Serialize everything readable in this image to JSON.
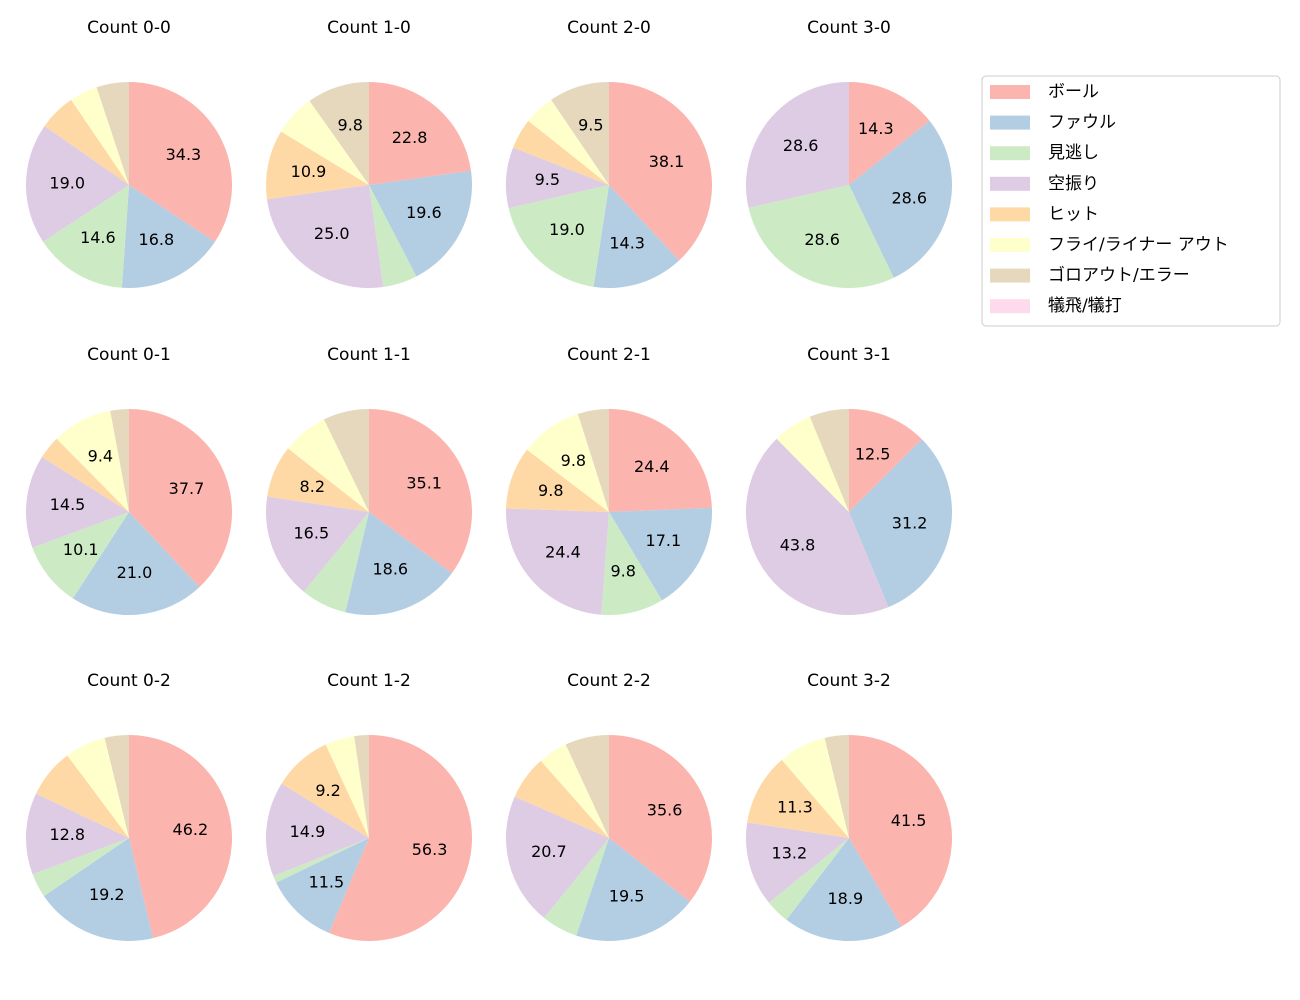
{
  "chart_data": [
    {
      "type": "pie",
      "title": "Count 0-0",
      "categories": [
        "ボール",
        "ファウル",
        "見逃し",
        "空振り",
        "ヒット",
        "フライ/ライナー アウト",
        "ゴロアウト/エラー",
        "犠飛/犠打"
      ],
      "colors": [
        "#fbb4ae",
        "#b3cde3",
        "#ccebc5",
        "#decbe4",
        "#fed9a6",
        "#ffffcc",
        "#e5d8bd",
        "#fddaec"
      ],
      "values": [
        34.3,
        16.8,
        14.6,
        19.0,
        5.8,
        4.4,
        5.1,
        0
      ],
      "value_labels": [
        "34.3",
        "16.8",
        "14.6",
        "19.0",
        null,
        null,
        null,
        null
      ]
    },
    {
      "type": "pie",
      "title": "Count 1-0",
      "categories": [
        "ボール",
        "ファウル",
        "見逃し",
        "空振り",
        "ヒット",
        "フライ/ライナー アウト",
        "ゴロアウト/エラー",
        "犠飛/犠打"
      ],
      "colors": [
        "#fbb4ae",
        "#b3cde3",
        "#ccebc5",
        "#decbe4",
        "#fed9a6",
        "#ffffcc",
        "#e5d8bd",
        "#fddaec"
      ],
      "values": [
        22.8,
        19.6,
        5.4,
        25.0,
        10.9,
        6.5,
        9.8,
        0
      ],
      "value_labels": [
        "22.8",
        "19.6",
        null,
        "25.0",
        "10.9",
        null,
        "9.8",
        null
      ]
    },
    {
      "type": "pie",
      "title": "Count 2-0",
      "categories": [
        "ボール",
        "ファウル",
        "見逃し",
        "空振り",
        "ヒット",
        "フライ/ライナー アウト",
        "ゴロアウト/エラー",
        "犠飛/犠打"
      ],
      "colors": [
        "#fbb4ae",
        "#b3cde3",
        "#ccebc5",
        "#decbe4",
        "#fed9a6",
        "#ffffcc",
        "#e5d8bd",
        "#fddaec"
      ],
      "values": [
        38.1,
        14.3,
        19.0,
        9.5,
        4.8,
        4.8,
        9.5,
        0
      ],
      "value_labels": [
        "38.1",
        "14.3",
        "19.0",
        "9.5",
        null,
        null,
        "9.5",
        null
      ]
    },
    {
      "type": "pie",
      "title": "Count 3-0",
      "categories": [
        "ボール",
        "ファウル",
        "見逃し",
        "空振り",
        "ヒット",
        "フライ/ライナー アウト",
        "ゴロアウト/エラー",
        "犠飛/犠打"
      ],
      "colors": [
        "#fbb4ae",
        "#b3cde3",
        "#ccebc5",
        "#decbe4",
        "#fed9a6",
        "#ffffcc",
        "#e5d8bd",
        "#fddaec"
      ],
      "values": [
        14.3,
        28.6,
        28.6,
        28.6,
        0,
        0,
        0,
        0
      ],
      "value_labels": [
        "14.3",
        "28.6",
        "28.6",
        "28.6",
        null,
        null,
        null,
        null
      ]
    },
    {
      "type": "pie",
      "title": "Count 0-1",
      "categories": [
        "ボール",
        "ファウル",
        "見逃し",
        "空振り",
        "ヒット",
        "フライ/ライナー アウト",
        "ゴロアウト/エラー",
        "犠飛/犠打"
      ],
      "colors": [
        "#fbb4ae",
        "#b3cde3",
        "#ccebc5",
        "#decbe4",
        "#fed9a6",
        "#ffffcc",
        "#e5d8bd",
        "#fddaec"
      ],
      "values": [
        37.7,
        21.0,
        10.1,
        14.5,
        3.6,
        9.4,
        2.9,
        0
      ],
      "value_labels": [
        "37.7",
        "21.0",
        "10.1",
        "14.5",
        null,
        "9.4",
        null,
        null
      ]
    },
    {
      "type": "pie",
      "title": "Count 1-1",
      "categories": [
        "ボール",
        "ファウル",
        "見逃し",
        "空振り",
        "ヒット",
        "フライ/ライナー アウト",
        "ゴロアウト/エラー",
        "犠飛/犠打"
      ],
      "colors": [
        "#fbb4ae",
        "#b3cde3",
        "#ccebc5",
        "#decbe4",
        "#fed9a6",
        "#ffffcc",
        "#e5d8bd",
        "#fddaec"
      ],
      "values": [
        35.1,
        18.6,
        7.2,
        16.5,
        8.2,
        7.2,
        7.2,
        0
      ],
      "value_labels": [
        "35.1",
        "18.6",
        null,
        "16.5",
        "8.2",
        null,
        null,
        null
      ]
    },
    {
      "type": "pie",
      "title": "Count 2-1",
      "categories": [
        "ボール",
        "ファウル",
        "見逃し",
        "空振り",
        "ヒット",
        "フライ/ライナー アウト",
        "ゴロアウト/エラー",
        "犠飛/犠打"
      ],
      "colors": [
        "#fbb4ae",
        "#b3cde3",
        "#ccebc5",
        "#decbe4",
        "#fed9a6",
        "#ffffcc",
        "#e5d8bd",
        "#fddaec"
      ],
      "values": [
        24.4,
        17.1,
        9.8,
        24.4,
        9.8,
        9.8,
        4.9,
        0
      ],
      "value_labels": [
        "24.4",
        "17.1",
        "9.8",
        "24.4",
        "9.8",
        "9.8",
        null,
        null
      ]
    },
    {
      "type": "pie",
      "title": "Count 3-1",
      "categories": [
        "ボール",
        "ファウル",
        "見逃し",
        "空振り",
        "ヒット",
        "フライ/ライナー アウト",
        "ゴロアウト/エラー",
        "犠飛/犠打"
      ],
      "colors": [
        "#fbb4ae",
        "#b3cde3",
        "#ccebc5",
        "#decbe4",
        "#fed9a6",
        "#ffffcc",
        "#e5d8bd",
        "#fddaec"
      ],
      "values": [
        12.5,
        31.2,
        0,
        43.8,
        0,
        6.2,
        6.2,
        0
      ],
      "value_labels": [
        "12.5",
        "31.2",
        null,
        "43.8",
        null,
        null,
        null,
        null
      ]
    },
    {
      "type": "pie",
      "title": "Count 0-2",
      "categories": [
        "ボール",
        "ファウル",
        "見逃し",
        "空振り",
        "ヒット",
        "フライ/ライナー アウト",
        "ゴロアウト/エラー",
        "犠飛/犠打"
      ],
      "colors": [
        "#fbb4ae",
        "#b3cde3",
        "#ccebc5",
        "#decbe4",
        "#fed9a6",
        "#ffffcc",
        "#e5d8bd",
        "#fddaec"
      ],
      "values": [
        46.2,
        19.2,
        3.8,
        12.8,
        7.7,
        6.4,
        3.8,
        0
      ],
      "value_labels": [
        "46.2",
        "19.2",
        null,
        "12.8",
        null,
        null,
        null,
        null
      ]
    },
    {
      "type": "pie",
      "title": "Count 1-2",
      "categories": [
        "ボール",
        "ファウル",
        "見逃し",
        "空振り",
        "ヒット",
        "フライ/ライナー アウト",
        "ゴロアウト/エラー",
        "犠飛/犠打"
      ],
      "colors": [
        "#fbb4ae",
        "#b3cde3",
        "#ccebc5",
        "#decbe4",
        "#fed9a6",
        "#ffffcc",
        "#e5d8bd",
        "#fddaec"
      ],
      "values": [
        56.3,
        11.5,
        1.1,
        14.9,
        9.2,
        4.6,
        2.3,
        0
      ],
      "value_labels": [
        "56.3",
        "11.5",
        null,
        "14.9",
        "9.2",
        null,
        null,
        null
      ]
    },
    {
      "type": "pie",
      "title": "Count 2-2",
      "categories": [
        "ボール",
        "ファウル",
        "見逃し",
        "空振り",
        "ヒット",
        "フライ/ライナー アウト",
        "ゴロアウト/エラー",
        "犠飛/犠打"
      ],
      "colors": [
        "#fbb4ae",
        "#b3cde3",
        "#ccebc5",
        "#decbe4",
        "#fed9a6",
        "#ffffcc",
        "#e5d8bd",
        "#fddaec"
      ],
      "values": [
        35.6,
        19.5,
        5.7,
        20.7,
        6.9,
        4.6,
        6.9,
        0
      ],
      "value_labels": [
        "35.6",
        "19.5",
        null,
        "20.7",
        null,
        null,
        null,
        null
      ]
    },
    {
      "type": "pie",
      "title": "Count 3-2",
      "categories": [
        "ボール",
        "ファウル",
        "見逃し",
        "空振り",
        "ヒット",
        "フライ/ライナー アウト",
        "ゴロアウト/エラー",
        "犠飛/犠打"
      ],
      "colors": [
        "#fbb4ae",
        "#b3cde3",
        "#ccebc5",
        "#decbe4",
        "#fed9a6",
        "#ffffcc",
        "#e5d8bd",
        "#fddaec"
      ],
      "values": [
        41.5,
        18.9,
        3.8,
        13.2,
        11.3,
        7.5,
        3.8,
        0
      ],
      "value_labels": [
        "41.5",
        "18.9",
        null,
        "13.2",
        "11.3",
        null,
        null,
        null
      ]
    }
  ]
}
